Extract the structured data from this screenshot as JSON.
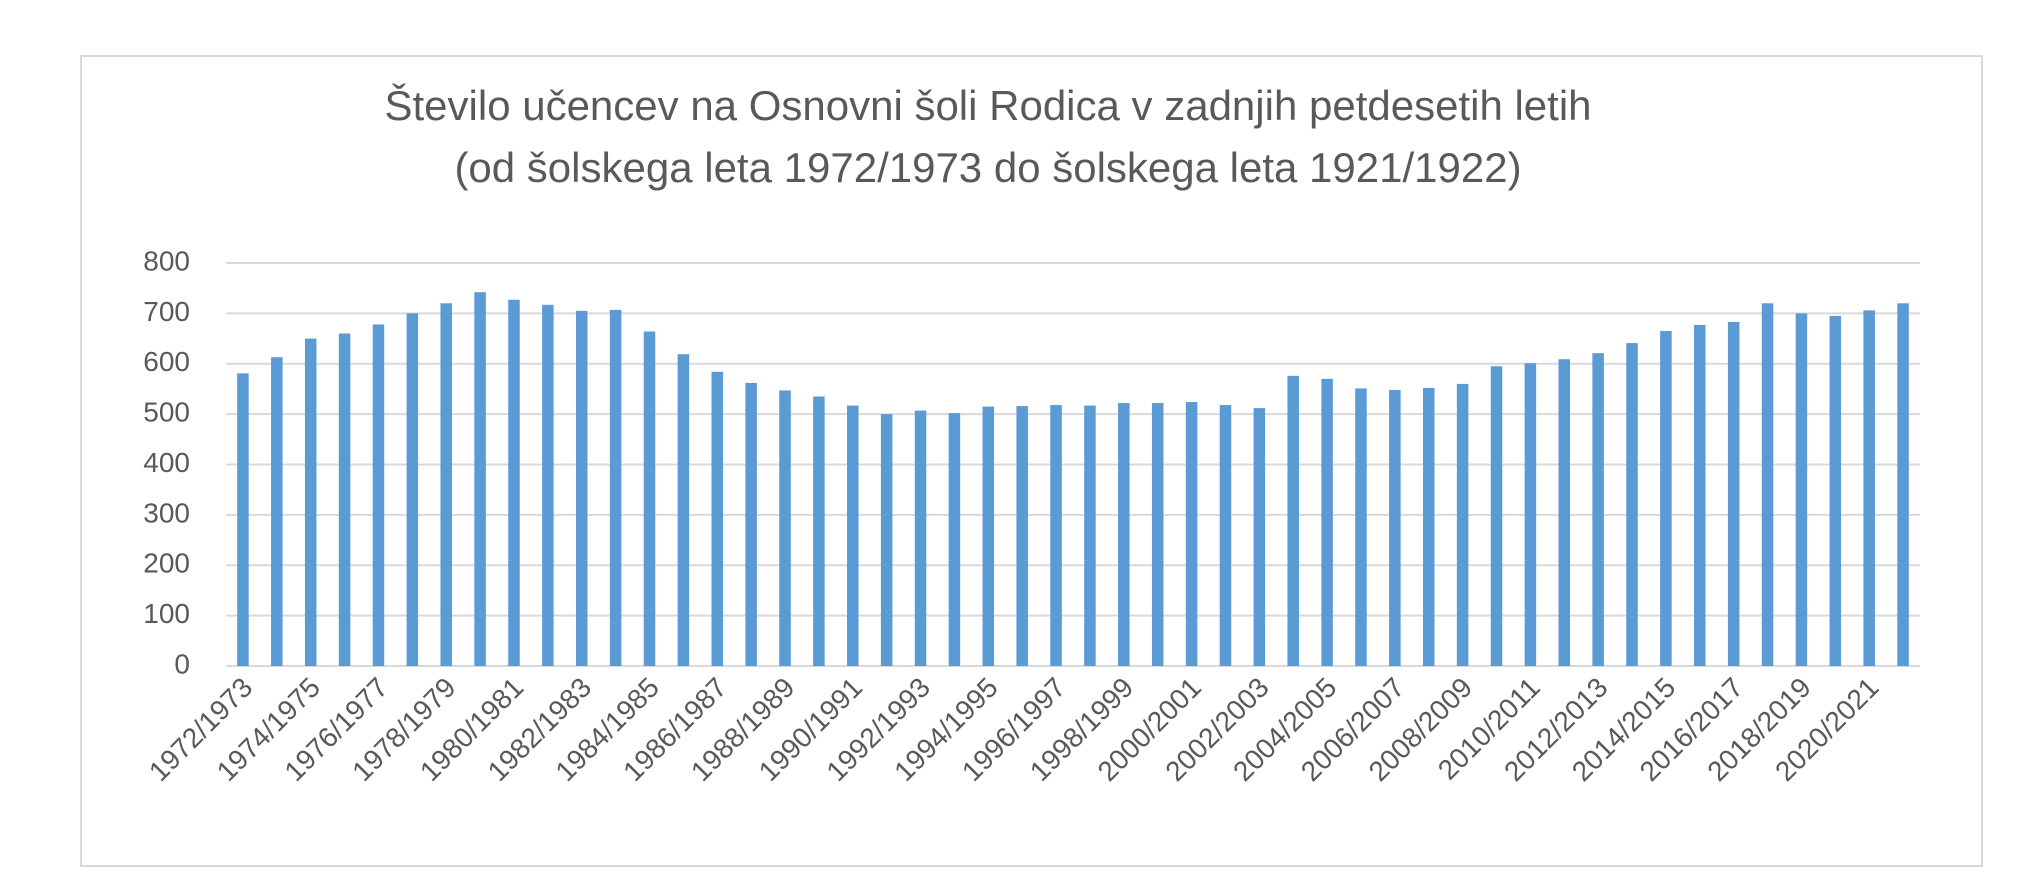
{
  "chart_data": {
    "type": "bar",
    "title": [
      "Število učencev na Osnovni šoli Rodica v zadnjih petdesetih letih",
      "(od šolskega leta 1972/1973 do šolskega leta 1921/1922)"
    ],
    "categories": [
      "1972/1973",
      null,
      "1974/1975",
      null,
      "1976/1977",
      null,
      "1978/1979",
      null,
      "1980/1981",
      null,
      "1982/1983",
      null,
      "1984/1985",
      null,
      "1986/1987",
      null,
      "1988/1989",
      null,
      "1990/1991",
      null,
      "1992/1993",
      null,
      "1994/1995",
      null,
      "1996/1997",
      null,
      "1998/1999",
      null,
      "2000/2001",
      null,
      "2002/2003",
      null,
      "2004/2005",
      null,
      "2006/2007",
      null,
      "2008/2009",
      null,
      "2010/2011",
      null,
      "2012/2013",
      null,
      "2014/2015",
      null,
      "2016/2017",
      null,
      "2018/2019",
      null,
      "2020/2021",
      null
    ],
    "values": [
      581,
      613,
      650,
      660,
      678,
      700,
      720,
      742,
      727,
      717,
      705,
      707,
      664,
      619,
      584,
      562,
      547,
      535,
      517,
      500,
      507,
      502,
      515,
      516,
      518,
      517,
      522,
      522,
      524,
      518,
      512,
      576,
      570,
      551,
      548,
      552,
      560,
      595,
      601,
      609,
      621,
      641,
      665,
      677,
      683,
      720,
      700,
      695,
      706,
      720
    ],
    "color": "#5b9bd5",
    "ylim": [
      0,
      800
    ],
    "yticks": [
      0,
      100,
      200,
      300,
      400,
      500,
      600,
      700,
      800
    ],
    "grid": true
  }
}
